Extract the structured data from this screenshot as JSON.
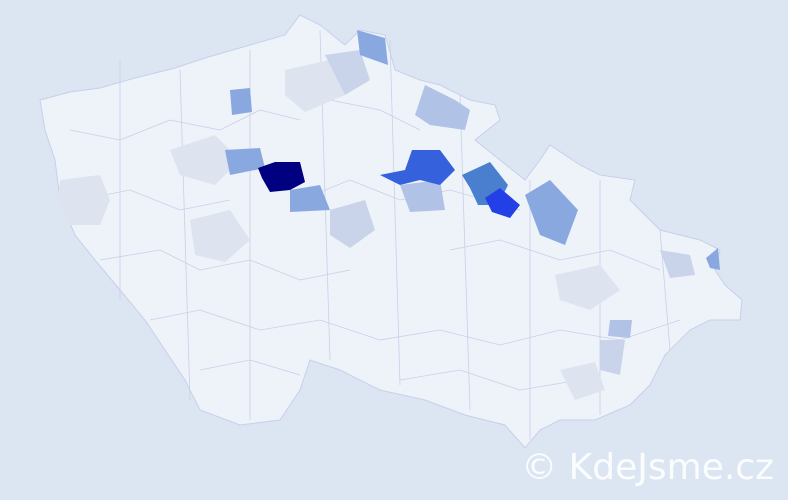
{
  "watermark": "© KdeJsme.cz",
  "colors": {
    "background": "#dce5f2",
    "base_region": "#eef2f9",
    "border": "#c8d0ea",
    "scale": [
      "#dde3ef",
      "#c9d3ea",
      "#b0c2e6",
      "#8aa8e0",
      "#4a7fd0",
      "#3561dc",
      "#2340e6",
      "#000080"
    ]
  }
}
